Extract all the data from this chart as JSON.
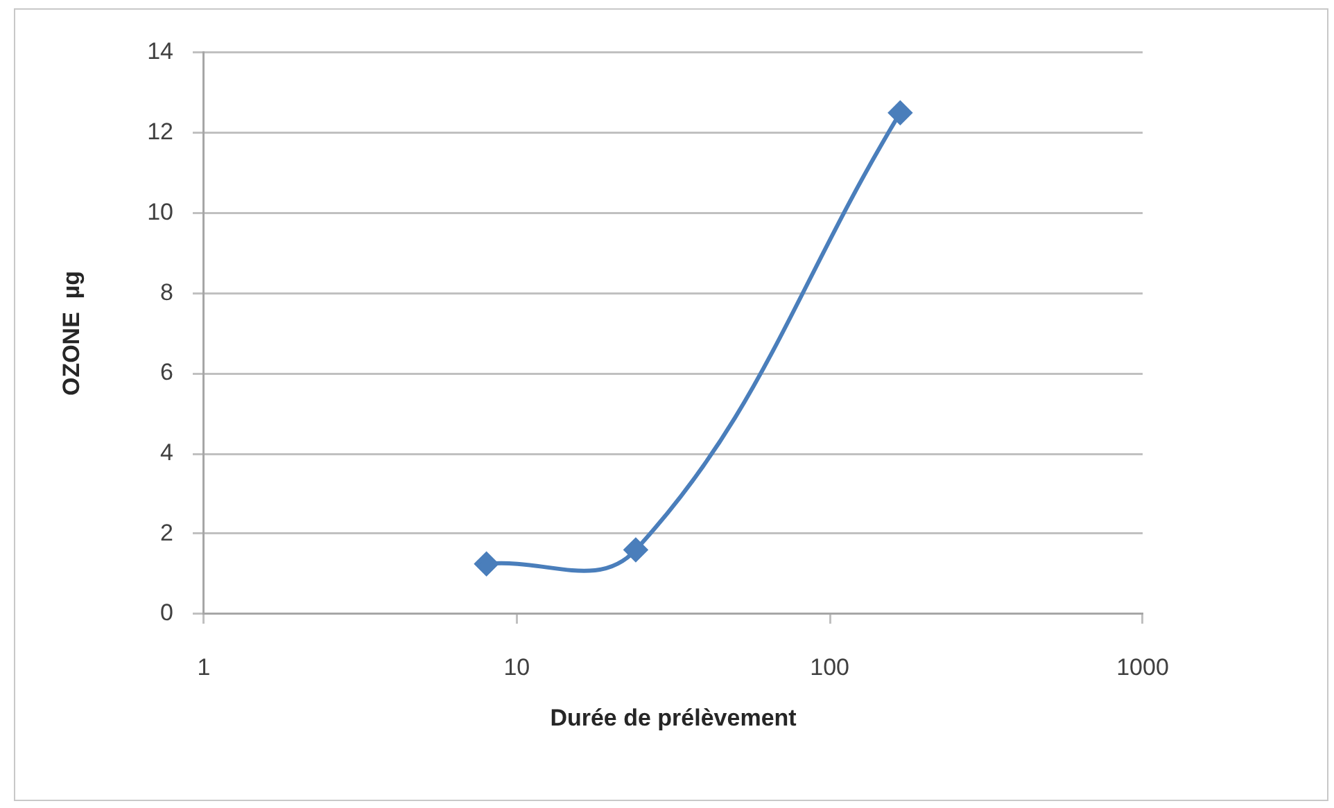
{
  "chart_data": {
    "type": "line",
    "xlabel": "Durée de prélèvement",
    "ylabel": "OZONE  µg",
    "x": [
      8,
      24,
      168
    ],
    "values": [
      1.25,
      1.6,
      12.5
    ],
    "color": "#4a7ebb",
    "log": "x",
    "xlim": [
      1,
      1000
    ],
    "xticks": [
      1,
      10,
      100,
      1000
    ],
    "ylim": [
      0,
      14
    ],
    "yticks": [
      0,
      2,
      4,
      6,
      8,
      10,
      12,
      14
    ],
    "grid": "y",
    "marker": "diamond",
    "line_style": "solid"
  }
}
